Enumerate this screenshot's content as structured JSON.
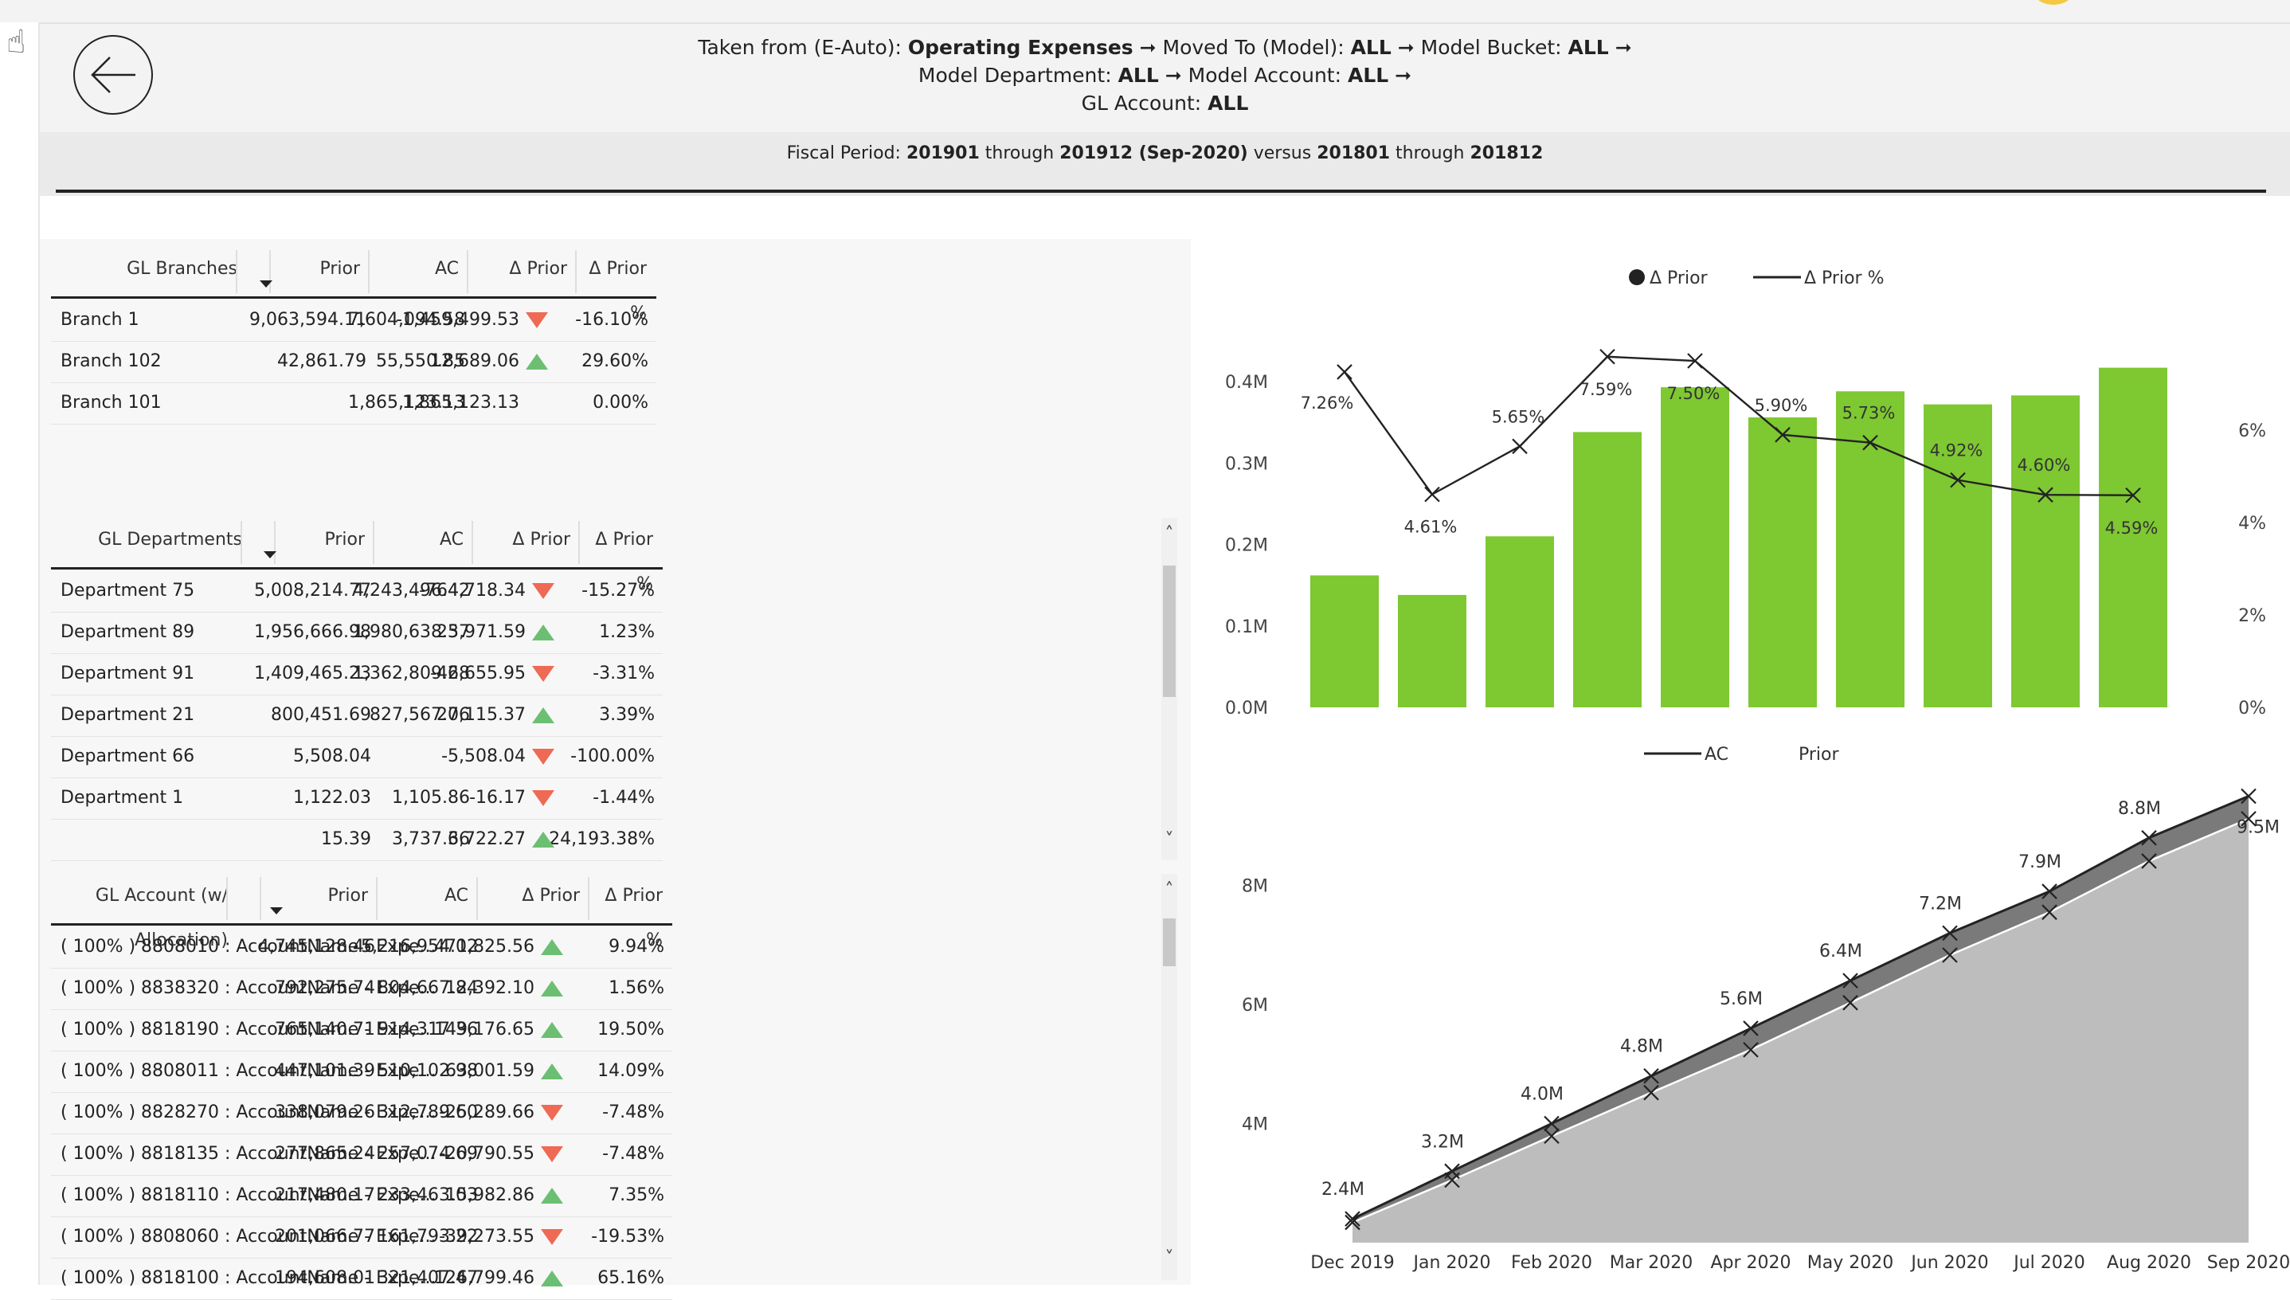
{
  "breadcrumb": {
    "line1": [
      {
        "text": "Taken from (E-Auto): ",
        "bold": false
      },
      {
        "text": "Operating Expenses",
        "bold": true
      },
      {
        "text": " ➞ Moved To (Model): ",
        "bold": false
      },
      {
        "text": "ALL",
        "bold": true
      },
      {
        "text": " ➞ Model Bucket: ",
        "bold": false
      },
      {
        "text": "ALL",
        "bold": true
      },
      {
        "text": " ➞",
        "bold": false
      }
    ],
    "line2": [
      {
        "text": "Model Department: ",
        "bold": false
      },
      {
        "text": "ALL",
        "bold": true
      },
      {
        "text": " ➞ Model Account: ",
        "bold": false
      },
      {
        "text": "ALL",
        "bold": true
      },
      {
        "text": " ➞",
        "bold": false
      }
    ],
    "line3": [
      {
        "text": "GL Account: ",
        "bold": false
      },
      {
        "text": "ALL",
        "bold": true
      }
    ]
  },
  "fiscal": [
    {
      "text": "Fiscal Period: ",
      "bold": false
    },
    {
      "text": "201901",
      "bold": true
    },
    {
      "text": " through ",
      "bold": false
    },
    {
      "text": "201912 (Sep-2020)",
      "bold": true
    },
    {
      "text": " versus ",
      "bold": false
    },
    {
      "text": "201801",
      "bold": true
    },
    {
      "text": " through ",
      "bold": false
    },
    {
      "text": "201812",
      "bold": true
    }
  ],
  "colors": {
    "up": "#6cbf72",
    "down": "#ee6a55",
    "bar": "#7ec832",
    "area_prior": "#bdbdbd",
    "area_ac": "#7a7a7a"
  },
  "branches": {
    "headers": [
      "GL Branches",
      "Prior",
      "AC",
      "Δ Prior",
      "Δ Prior %"
    ],
    "rows": [
      {
        "name": "Branch 1",
        "prior": "9,063,594.11",
        "ac": "7,604,094.58",
        "delta": "-1,459,499.53",
        "dir": "down",
        "pct": "-16.10%"
      },
      {
        "name": "Branch 102",
        "prior": "42,861.79",
        "ac": "55,550.85",
        "delta": "12,689.06",
        "dir": "up",
        "pct": "29.60%"
      },
      {
        "name": "Branch 101",
        "prior": "",
        "ac": "1,865,123.13",
        "delta": "1,865,123.13",
        "dir": "",
        "pct": "0.00%"
      }
    ]
  },
  "departments": {
    "headers": [
      "GL Departments",
      "Prior",
      "AC",
      "Δ Prior",
      "Δ Prior %"
    ],
    "rows": [
      {
        "name": "Department 75",
        "prior": "5,008,214.77",
        "ac": "4,243,496.42",
        "delta": "-764,718.34",
        "dir": "down",
        "pct": "-15.27%"
      },
      {
        "name": "Department 89",
        "prior": "1,956,666.98",
        "ac": "1,980,638.57",
        "delta": "23,971.59",
        "dir": "up",
        "pct": "1.23%"
      },
      {
        "name": "Department 91",
        "prior": "1,409,465.23",
        "ac": "1,362,809.28",
        "delta": "-46,655.95",
        "dir": "down",
        "pct": "-3.31%"
      },
      {
        "name": "Department 21",
        "prior": "800,451.69",
        "ac": "827,567.06",
        "delta": "27,115.37",
        "dir": "up",
        "pct": "3.39%"
      },
      {
        "name": "Department 66",
        "prior": "5,508.04",
        "ac": "",
        "delta": "-5,508.04",
        "dir": "down",
        "pct": "-100.00%"
      },
      {
        "name": "Department 1",
        "prior": "1,122.03",
        "ac": "1,105.86",
        "delta": "-16.17",
        "dir": "down",
        "pct": "-1.44%"
      },
      {
        "name": "",
        "prior": "15.39",
        "ac": "3,737.66",
        "delta": "3,722.27",
        "dir": "up",
        "pct": "24,193.38%"
      }
    ]
  },
  "accounts": {
    "headers": [
      "GL Account (w/ Allocation)",
      "Prior",
      "AC",
      "Δ Prior",
      "Δ Prior %"
    ],
    "rows": [
      {
        "name": "( 100% ) 8808010 : AccountName - Expe...",
        "prior": "4,745,128.46",
        "ac": "5,216,954.02",
        "delta": "471,825.56",
        "dir": "up",
        "pct": "9.94%"
      },
      {
        "name": "( 100% ) 8838320 : AccountName - Expe...",
        "prior": "792,275.74",
        "ac": "804,667.84",
        "delta": "12,392.10",
        "dir": "up",
        "pct": "1.56%"
      },
      {
        "name": "( 100% ) 8818190 : AccountName - Expe...",
        "prior": "765,140.71",
        "ac": "914,317.36",
        "delta": "149,176.65",
        "dir": "up",
        "pct": "19.50%"
      },
      {
        "name": "( 100% ) 8808011 : AccountName - Expe...",
        "prior": "447,101.39",
        "ac": "510,102.98",
        "delta": "63,001.59",
        "dir": "up",
        "pct": "14.09%"
      },
      {
        "name": "( 100% ) 8828270 : AccountName - Expe...",
        "prior": "338,079.26",
        "ac": "312,789.60",
        "delta": "-25,289.66",
        "dir": "down",
        "pct": "-7.48%"
      },
      {
        "name": "( 100% ) 8818135 : AccountName - Expe...",
        "prior": "277,865.24",
        "ac": "257,074.69",
        "delta": "-20,790.55",
        "dir": "down",
        "pct": "-7.48%"
      },
      {
        "name": "( 100% ) 8818110 : AccountName - Expe...",
        "prior": "217,480.17",
        "ac": "233,463.03",
        "delta": "15,982.86",
        "dir": "up",
        "pct": "7.35%"
      },
      {
        "name": "( 100% ) 8808060 : AccountName - Expe...",
        "prior": "201,066.77",
        "ac": "161,793.22",
        "delta": "-39,273.55",
        "dir": "down",
        "pct": "-19.53%"
      },
      {
        "name": "( 100% ) 8818100 : AccountName - Expe...",
        "prior": "194,608.01",
        "ac": "321,407.47",
        "delta": "126,799.46",
        "dir": "up",
        "pct": "65.16%"
      }
    ]
  },
  "chart_data": [
    {
      "type": "bar",
      "legend": [
        "Δ Prior",
        "Δ Prior %"
      ],
      "legend_position": "top-center",
      "categories": [
        "Dec 2019",
        "Jan 2020",
        "Feb 2020",
        "Mar 2020",
        "Apr 2020",
        "May 2020",
        "Jun 2020",
        "Jul 2020",
        "Aug 2020",
        "Sep 2020"
      ],
      "series": [
        {
          "name": "Δ Prior",
          "type": "bar",
          "axis": "left",
          "values": [
            0.162,
            0.138,
            0.21,
            0.338,
            0.393,
            0.356,
            0.388,
            0.372,
            0.383,
            0.417
          ]
        },
        {
          "name": "Δ Prior %",
          "type": "line",
          "axis": "right",
          "values": [
            7.26,
            4.61,
            5.65,
            7.59,
            7.5,
            5.9,
            5.73,
            4.92,
            4.6,
            4.59
          ],
          "labels": [
            "7.26%",
            "4.61%",
            "5.65%",
            "7.59%",
            "7.50%",
            "5.90%",
            "5.73%",
            "4.92%",
            "4.60%",
            "4.59%"
          ]
        }
      ],
      "y_left": {
        "ticks": [
          "0.0M",
          "0.1M",
          "0.2M",
          "0.3M",
          "0.4M"
        ],
        "range": [
          0,
          0.4
        ]
      },
      "y_right": {
        "ticks": [
          "0%",
          "2%",
          "4%",
          "6%"
        ],
        "range": [
          0,
          7
        ]
      }
    },
    {
      "type": "area",
      "legend": [
        "AC",
        "Prior"
      ],
      "legend_position": "top-center",
      "categories": [
        "Dec 2019",
        "Jan 2020",
        "Feb 2020",
        "Mar 2020",
        "Apr 2020",
        "May 2020",
        "Jun 2020",
        "Jul 2020",
        "Aug 2020",
        "Sep 2020"
      ],
      "series": [
        {
          "name": "AC",
          "values": [
            2.4,
            3.2,
            4.0,
            4.8,
            5.6,
            6.4,
            7.2,
            7.9,
            8.8,
            9.5
          ],
          "labels": [
            "2.4M",
            "3.2M",
            "4.0M",
            "4.8M",
            "5.6M",
            "6.4M",
            "7.2M",
            "7.9M",
            "8.8M",
            "9.5M"
          ]
        },
        {
          "name": "Prior",
          "values": [
            2.34,
            3.05,
            3.79,
            4.52,
            5.24,
            6.03,
            6.83,
            7.55,
            8.41,
            9.12
          ]
        }
      ],
      "y": {
        "ticks": [
          "4M",
          "6M",
          "8M"
        ],
        "range": [
          2,
          9.6
        ]
      }
    }
  ]
}
